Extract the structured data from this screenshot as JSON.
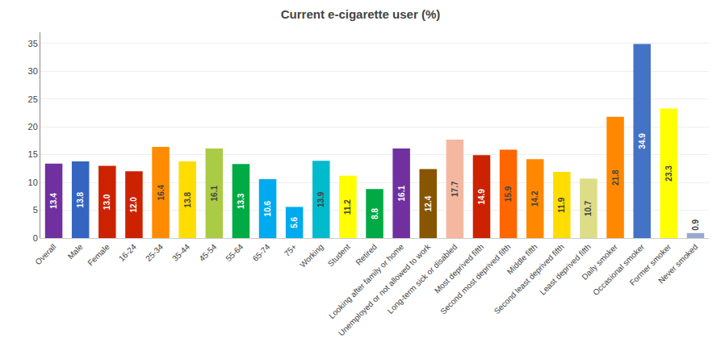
{
  "chart_data": {
    "type": "bar",
    "title": "Current e-cigarette user (%)",
    "categories": [
      "Overall",
      "Male",
      "Female",
      "16-24",
      "25-34",
      "35-44",
      "45-54",
      "55-64",
      "65-74",
      "75+",
      "Working",
      "Student",
      "Retired",
      "Looking after family or home",
      "Unemployed or not allowed to work",
      "Long-term sick or disabled",
      "Most deprived fifth",
      "Second most deprived fifth",
      "Middle fifth",
      "Second least deprived fifth",
      "Least deprived fifth",
      "Daily smoker",
      "Occasional smoker",
      "Former smoker",
      "Never smoked"
    ],
    "values": [
      13.4,
      13.8,
      13.0,
      12.0,
      16.4,
      13.8,
      16.1,
      13.3,
      10.6,
      5.6,
      13.9,
      11.2,
      8.8,
      16.1,
      12.4,
      17.7,
      14.9,
      15.9,
      14.2,
      11.9,
      10.7,
      21.8,
      34.9,
      23.3,
      0.9
    ],
    "value_labels": [
      "13.4",
      "13.8",
      "13.0",
      "12.0",
      "16.4",
      "13.8",
      "16.1",
      "13.3",
      "10.6",
      "5.6",
      "13.9",
      "11.2",
      "8.8",
      "16.1",
      "12.4",
      "17.7",
      "14.9",
      "15.9",
      "14.2",
      "11.9",
      "10.7",
      "21.8",
      "34.9",
      "23.3",
      "0.9"
    ],
    "colors": [
      "#7030a0",
      "#3465c0",
      "#cc2200",
      "#cc2200",
      "#ff8c00",
      "#ffdd00",
      "#aacc44",
      "#00aa44",
      "#00aaee",
      "#00aaee",
      "#00bbcc",
      "#ffff00",
      "#00aa44",
      "#7030a0",
      "#885500",
      "#f4b8a0",
      "#cc2200",
      "#ff6600",
      "#ff8800",
      "#ffdd00",
      "#dddd88",
      "#ff8800",
      "#4472c4",
      "#ffff00",
      "#99aacc"
    ],
    "ylim": [
      0,
      37
    ],
    "yticks": [
      0,
      5,
      10,
      15,
      20,
      25,
      30,
      35
    ],
    "grid": true,
    "data_labels": true
  }
}
